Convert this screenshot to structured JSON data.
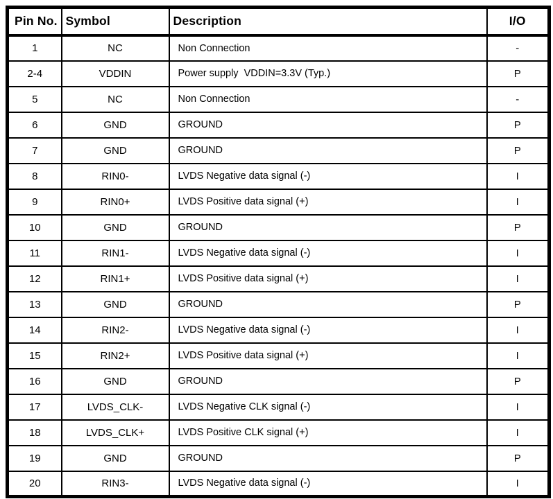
{
  "colors": {
    "border": "#000000",
    "text": "#000000",
    "background": "#ffffff"
  },
  "table": {
    "headers": {
      "pin": "Pin No.",
      "symbol": "Symbol",
      "description": "Description",
      "io": "I/O"
    },
    "rows": [
      {
        "pin": "1",
        "symbol": "NC",
        "description": "Non Connection",
        "io": "-"
      },
      {
        "pin": "2-4",
        "symbol": "VDDIN",
        "description": "Power supply  VDDIN=3.3V (Typ.)",
        "io": "P"
      },
      {
        "pin": "5",
        "symbol": "NC",
        "description": "Non Connection",
        "io": "-"
      },
      {
        "pin": "6",
        "symbol": "GND",
        "description": "GROUND",
        "io": "P"
      },
      {
        "pin": "7",
        "symbol": "GND",
        "description": "GROUND",
        "io": "P"
      },
      {
        "pin": "8",
        "symbol": "RIN0-",
        "description": "LVDS Negative data signal (-)",
        "io": "I"
      },
      {
        "pin": "9",
        "symbol": "RIN0+",
        "description": "LVDS Positive data signal (+)",
        "io": "I"
      },
      {
        "pin": "10",
        "symbol": "GND",
        "description": "GROUND",
        "io": "P"
      },
      {
        "pin": "11",
        "symbol": "RIN1-",
        "description": "LVDS Negative data signal (-)",
        "io": "I"
      },
      {
        "pin": "12",
        "symbol": "RIN1+",
        "description": "LVDS Positive data signal (+)",
        "io": "I"
      },
      {
        "pin": "13",
        "symbol": "GND",
        "description": "GROUND",
        "io": "P"
      },
      {
        "pin": "14",
        "symbol": "RIN2-",
        "description": "LVDS Negative data signal (-)",
        "io": "I"
      },
      {
        "pin": "15",
        "symbol": "RIN2+",
        "description": "LVDS Positive data signal (+)",
        "io": "I"
      },
      {
        "pin": "16",
        "symbol": "GND",
        "description": "GROUND",
        "io": "P"
      },
      {
        "pin": "17",
        "symbol": "LVDS_CLK-",
        "description": "LVDS Negative CLK signal (-)",
        "io": "I"
      },
      {
        "pin": "18",
        "symbol": "LVDS_CLK+",
        "description": "LVDS Positive CLK signal (+)",
        "io": "I"
      },
      {
        "pin": "19",
        "symbol": "GND",
        "description": "GROUND",
        "io": "P"
      },
      {
        "pin": "20",
        "symbol": "RIN3-",
        "description": "LVDS Negative data signal (-)",
        "io": "I"
      }
    ]
  }
}
